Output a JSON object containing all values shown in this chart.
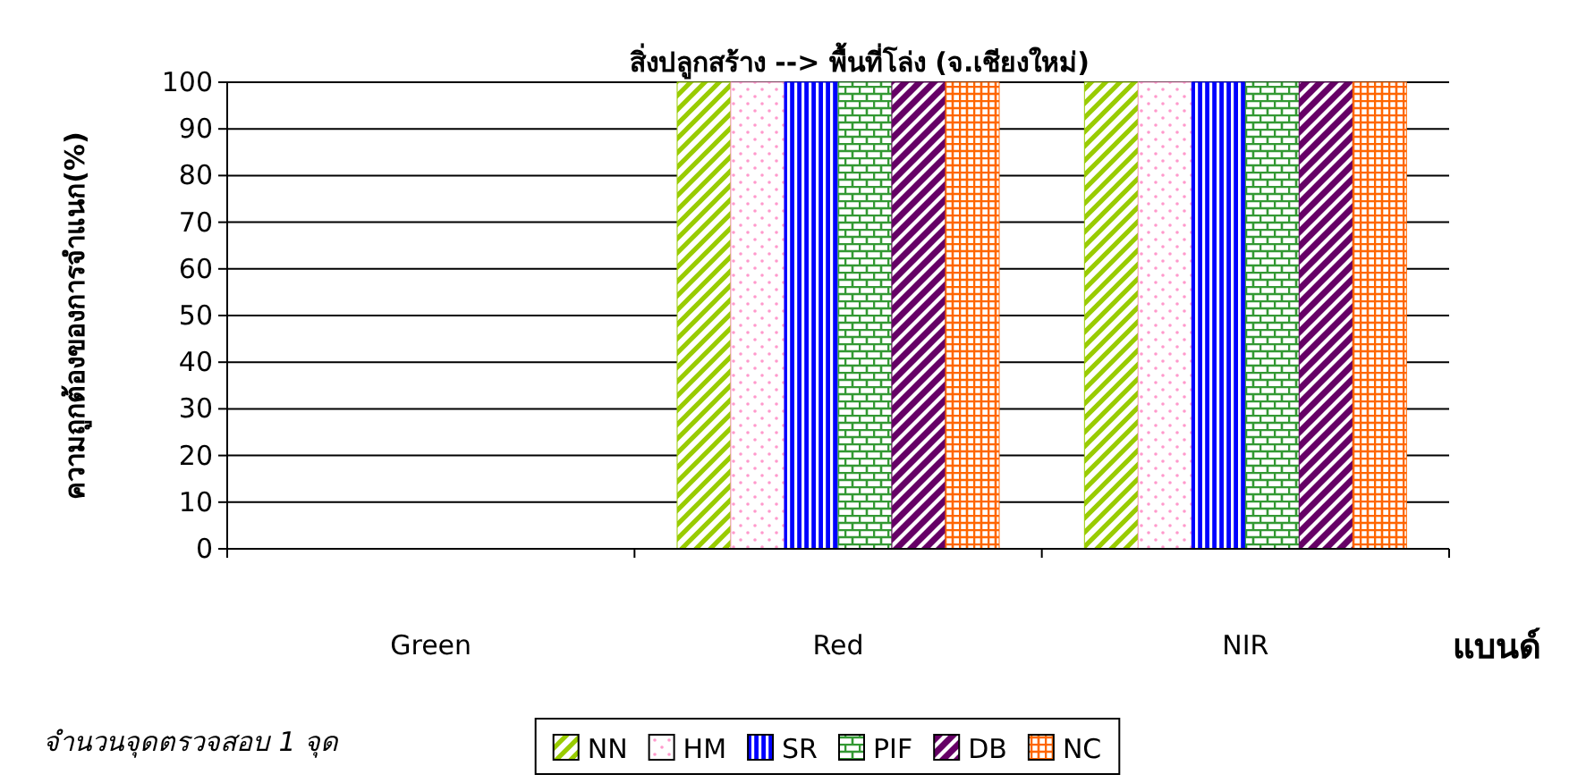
{
  "chart_data": {
    "type": "bar",
    "title": "สิ่งปลูกสร้าง --> พื้นที่โล่ง (จ.เชียงใหม่)",
    "ylabel": "ความถูกต้องของการจำแนก(%)",
    "xlabel": "แบนด์",
    "annotations": [
      "จำนวนจุดตรวจสอบ 1 จุด"
    ],
    "categories": [
      "Green",
      "Red",
      "NIR"
    ],
    "series": [
      {
        "name": "NN",
        "color": "#99cc00",
        "values": [
          0,
          100,
          100
        ]
      },
      {
        "name": "HM",
        "color": "#ff99cc",
        "values": [
          0,
          100,
          100
        ]
      },
      {
        "name": "SR",
        "color": "#0000ff",
        "values": [
          0,
          100,
          100
        ]
      },
      {
        "name": "PIF",
        "color": "#339933",
        "values": [
          0,
          100,
          100
        ]
      },
      {
        "name": "DB",
        "color": "#660066",
        "values": [
          0,
          100,
          100
        ]
      },
      {
        "name": "NC",
        "color": "#ff6600",
        "values": [
          0,
          100,
          100
        ]
      }
    ],
    "ylim": [
      0,
      100
    ],
    "yticks": [
      0,
      10,
      20,
      30,
      40,
      50,
      60,
      70,
      80,
      90,
      100
    ],
    "grid": "y",
    "legend": "bottom"
  }
}
